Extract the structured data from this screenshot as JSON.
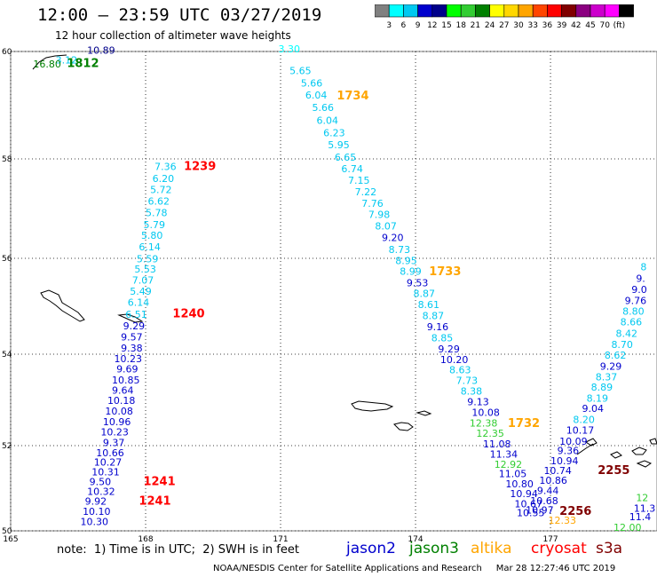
{
  "title": "12:00 – 23:59 UTC 03/27/2019",
  "subtitle": "12 hour collection of altimeter wave heights",
  "colorbar": {
    "colors": [
      "#808080",
      "#00ffff",
      "#00c8f0",
      "#0000cd",
      "#00008b",
      "#00ff00",
      "#32cd32",
      "#008000",
      "#ffff00",
      "#ffd700",
      "#ffa500",
      "#ff4500",
      "#ff0000",
      "#800000",
      "#8b0080",
      "#cc00cc",
      "#ff00ff",
      "#000000"
    ],
    "labels": [
      "3",
      "6",
      "9",
      "12",
      "15",
      "18",
      "21",
      "24",
      "27",
      "30",
      "33",
      "36",
      "39",
      "42",
      "45",
      "70",
      "(ft)"
    ]
  },
  "axes": {
    "lon_ticks": [
      "165",
      "168",
      "171",
      "174",
      "177"
    ],
    "lat_ticks": [
      "60",
      "58",
      "56",
      "54",
      "52",
      "50"
    ]
  },
  "note": "note:  1) Time is in UTC;  2) SWH is in feet",
  "missions": [
    {
      "name": "jason2",
      "color": "#0000cd"
    },
    {
      "name": "jason3",
      "color": "#008000"
    },
    {
      "name": "altika",
      "color": "#ffa500"
    },
    {
      "name": "cryosat",
      "color": "#ff0000"
    },
    {
      "name": "s3a",
      "color": "#800000"
    }
  ],
  "credit": "NOAA/NESDIS Center for Satellite Applications and Research     Mar 28 12:27:46 UTC 2019",
  "labels": [
    {
      "t": "10.89",
      "lon": 166.7,
      "lat": 59.96,
      "c": "#00008b"
    },
    {
      "t": "3.12",
      "lon": 166.0,
      "lat": 59.78,
      "c": "#00c8f0"
    },
    {
      "t": "16.80",
      "lon": 165.5,
      "lat": 59.7,
      "c": "#008000"
    },
    {
      "t": "1812",
      "lon": 166.25,
      "lat": 59.71,
      "c": "#008000",
      "b": true
    },
    {
      "t": "1239",
      "lon": 168.85,
      "lat": 57.78,
      "c": "#ff0000",
      "b": true
    },
    {
      "t": "7.36",
      "lon": 168.2,
      "lat": 57.78,
      "c": "#00c8f0"
    },
    {
      "t": "6.20",
      "lon": 168.15,
      "lat": 57.54,
      "c": "#00c8f0"
    },
    {
      "t": "5.72",
      "lon": 168.1,
      "lat": 57.31,
      "c": "#00c8f0"
    },
    {
      "t": "6.62",
      "lon": 168.05,
      "lat": 57.08,
      "c": "#00c8f0"
    },
    {
      "t": "5.78",
      "lon": 168.0,
      "lat": 56.85,
      "c": "#00c8f0"
    },
    {
      "t": "5.79",
      "lon": 167.95,
      "lat": 56.61,
      "c": "#00c8f0"
    },
    {
      "t": "5.80",
      "lon": 167.9,
      "lat": 56.39,
      "c": "#00c8f0"
    },
    {
      "t": "6.14",
      "lon": 167.85,
      "lat": 56.16,
      "c": "#00c8f0"
    },
    {
      "t": "5.59",
      "lon": 167.8,
      "lat": 55.92,
      "c": "#00c8f0"
    },
    {
      "t": "5.53",
      "lon": 167.75,
      "lat": 55.7,
      "c": "#00c8f0"
    },
    {
      "t": "7.07",
      "lon": 167.7,
      "lat": 55.47,
      "c": "#00c8f0"
    },
    {
      "t": "5.49",
      "lon": 167.65,
      "lat": 55.24,
      "c": "#00c8f0"
    },
    {
      "t": "6.14",
      "lon": 167.6,
      "lat": 55.01,
      "c": "#00c8f0"
    },
    {
      "t": "6.51",
      "lon": 167.55,
      "lat": 54.76,
      "c": "#00c8f0"
    },
    {
      "t": "1240",
      "lon": 168.6,
      "lat": 54.77,
      "c": "#ff0000",
      "b": true
    },
    {
      "t": "9.29",
      "lon": 167.5,
      "lat": 54.52,
      "c": "#0000cd"
    },
    {
      "t": "9.57",
      "lon": 167.45,
      "lat": 54.29,
      "c": "#0000cd"
    },
    {
      "t": "9.38",
      "lon": 167.45,
      "lat": 54.06,
      "c": "#0000cd"
    },
    {
      "t": "10.23",
      "lon": 167.3,
      "lat": 53.83,
      "c": "#0000cd"
    },
    {
      "t": "9.69",
      "lon": 167.35,
      "lat": 53.6,
      "c": "#0000cd"
    },
    {
      "t": "10.85",
      "lon": 167.25,
      "lat": 53.36,
      "c": "#0000cd"
    },
    {
      "t": "9.64",
      "lon": 167.25,
      "lat": 53.14,
      "c": "#0000cd"
    },
    {
      "t": "10.18",
      "lon": 167.15,
      "lat": 52.91,
      "c": "#0000cd"
    },
    {
      "t": "10.08",
      "lon": 167.1,
      "lat": 52.68,
      "c": "#0000cd"
    },
    {
      "t": "10.96",
      "lon": 167.05,
      "lat": 52.45,
      "c": "#0000cd"
    },
    {
      "t": "10.23",
      "lon": 167.0,
      "lat": 52.22,
      "c": "#0000cd"
    },
    {
      "t": "9.37",
      "lon": 167.05,
      "lat": 51.99,
      "c": "#0000cd"
    },
    {
      "t": "10.66",
      "lon": 166.9,
      "lat": 51.75,
      "c": "#0000cd"
    },
    {
      "t": "10.27",
      "lon": 166.85,
      "lat": 51.53,
      "c": "#0000cd"
    },
    {
      "t": "10.31",
      "lon": 166.8,
      "lat": 51.3,
      "c": "#0000cd"
    },
    {
      "t": "9.50",
      "lon": 166.75,
      "lat": 51.07,
      "c": "#0000cd"
    },
    {
      "t": "1241",
      "lon": 167.95,
      "lat": 51.07,
      "c": "#ff0000",
      "b": true
    },
    {
      "t": "10.32",
      "lon": 166.7,
      "lat": 50.84,
      "c": "#0000cd"
    },
    {
      "t": "9.92",
      "lon": 166.65,
      "lat": 50.61,
      "c": "#0000cd"
    },
    {
      "t": "1241",
      "lon": 167.85,
      "lat": 50.61,
      "c": "#ff0000",
      "b": true
    },
    {
      "t": "10.10",
      "lon": 166.6,
      "lat": 50.37,
      "c": "#0000cd"
    },
    {
      "t": "10.30",
      "lon": 166.55,
      "lat": 50.14,
      "c": "#0000cd"
    },
    {
      "t": "3.30",
      "lon": 170.95,
      "lat": 59.98,
      "c": "#00ffff"
    },
    {
      "t": "5.65",
      "lon": 171.2,
      "lat": 59.58,
      "c": "#00c8f0"
    },
    {
      "t": "5.66",
      "lon": 171.45,
      "lat": 59.35,
      "c": "#00c8f0"
    },
    {
      "t": "6.04",
      "lon": 171.55,
      "lat": 59.12,
      "c": "#00c8f0"
    },
    {
      "t": "1734",
      "lon": 172.25,
      "lat": 59.11,
      "c": "#ffa500",
      "b": true
    },
    {
      "t": "5.66",
      "lon": 171.7,
      "lat": 58.89,
      "c": "#00c8f0"
    },
    {
      "t": "6.04",
      "lon": 171.8,
      "lat": 58.65,
      "c": "#00c8f0"
    },
    {
      "t": "6.23",
      "lon": 171.95,
      "lat": 58.42,
      "c": "#00c8f0"
    },
    {
      "t": "5.95",
      "lon": 172.05,
      "lat": 58.2,
      "c": "#00c8f0"
    },
    {
      "t": "6.65",
      "lon": 172.2,
      "lat": 57.96,
      "c": "#00c8f0"
    },
    {
      "t": "6.74",
      "lon": 172.35,
      "lat": 57.73,
      "c": "#00c8f0"
    },
    {
      "t": "7.15",
      "lon": 172.5,
      "lat": 57.5,
      "c": "#00c8f0"
    },
    {
      "t": "7.22",
      "lon": 172.65,
      "lat": 57.27,
      "c": "#00c8f0"
    },
    {
      "t": "7.76",
      "lon": 172.8,
      "lat": 57.04,
      "c": "#00c8f0"
    },
    {
      "t": "7.98",
      "lon": 172.95,
      "lat": 56.81,
      "c": "#00c8f0"
    },
    {
      "t": "8.07",
      "lon": 173.1,
      "lat": 56.58,
      "c": "#00c8f0"
    },
    {
      "t": "9.20",
      "lon": 173.25,
      "lat": 56.35,
      "c": "#0000cd"
    },
    {
      "t": "8.73",
      "lon": 173.4,
      "lat": 56.11,
      "c": "#00c8f0"
    },
    {
      "t": "8.95",
      "lon": 173.55,
      "lat": 55.88,
      "c": "#00c8f0"
    },
    {
      "t": "8.99",
      "lon": 173.65,
      "lat": 55.66,
      "c": "#00c8f0"
    },
    {
      "t": "1733",
      "lon": 174.3,
      "lat": 55.65,
      "c": "#ffa500",
      "b": true
    },
    {
      "t": "9.53",
      "lon": 173.8,
      "lat": 55.42,
      "c": "#0000cd"
    },
    {
      "t": "8.87",
      "lon": 173.95,
      "lat": 55.19,
      "c": "#00c8f0"
    },
    {
      "t": "8.61",
      "lon": 174.05,
      "lat": 54.96,
      "c": "#00c8f0"
    },
    {
      "t": "8.87",
      "lon": 174.15,
      "lat": 54.73,
      "c": "#00c8f0"
    },
    {
      "t": "9.16",
      "lon": 174.25,
      "lat": 54.5,
      "c": "#0000cd"
    },
    {
      "t": "8.85",
      "lon": 174.35,
      "lat": 54.27,
      "c": "#00c8f0"
    },
    {
      "t": "9.29",
      "lon": 174.5,
      "lat": 54.04,
      "c": "#0000cd"
    },
    {
      "t": "10.20",
      "lon": 174.55,
      "lat": 53.81,
      "c": "#0000cd"
    },
    {
      "t": "8.63",
      "lon": 174.75,
      "lat": 53.58,
      "c": "#00c8f0"
    },
    {
      "t": "7.73",
      "lon": 174.9,
      "lat": 53.35,
      "c": "#00c8f0"
    },
    {
      "t": "8.38",
      "lon": 175.0,
      "lat": 53.12,
      "c": "#00c8f0"
    },
    {
      "t": "9.13",
      "lon": 175.15,
      "lat": 52.88,
      "c": "#0000cd"
    },
    {
      "t": "10.08",
      "lon": 175.25,
      "lat": 52.65,
      "c": "#0000cd"
    },
    {
      "t": "12.38",
      "lon": 175.2,
      "lat": 52.42,
      "c": "#32cd32"
    },
    {
      "t": "1732",
      "lon": 176.05,
      "lat": 52.41,
      "c": "#ffa500",
      "b": true
    },
    {
      "t": "12.35",
      "lon": 175.35,
      "lat": 52.19,
      "c": "#32cd32"
    },
    {
      "t": "11.08",
      "lon": 175.5,
      "lat": 51.96,
      "c": "#0000cd"
    },
    {
      "t": "11.34",
      "lon": 175.65,
      "lat": 51.72,
      "c": "#0000cd"
    },
    {
      "t": "12.92",
      "lon": 175.75,
      "lat": 51.48,
      "c": "#32cd32"
    },
    {
      "t": "11.05",
      "lon": 175.85,
      "lat": 51.26,
      "c": "#0000cd"
    },
    {
      "t": "10.80",
      "lon": 176.0,
      "lat": 51.02,
      "c": "#0000cd"
    },
    {
      "t": "10.94",
      "lon": 176.1,
      "lat": 50.79,
      "c": "#0000cd"
    },
    {
      "t": "10.67",
      "lon": 176.2,
      "lat": 50.55,
      "c": "#0000cd"
    },
    {
      "t": "10.55",
      "lon": 176.25,
      "lat": 50.34,
      "c": "#0000cd"
    },
    {
      "t": "10.97",
      "lon": 176.45,
      "lat": 50.41,
      "c": "#0000cd"
    },
    {
      "t": "10.68",
      "lon": 176.55,
      "lat": 50.63,
      "c": "#0000cd"
    },
    {
      "t": "9.44",
      "lon": 176.7,
      "lat": 50.86,
      "c": "#0000cd"
    },
    {
      "t": "10.86",
      "lon": 176.75,
      "lat": 51.1,
      "c": "#0000cd"
    },
    {
      "t": "10.74",
      "lon": 176.85,
      "lat": 51.33,
      "c": "#0000cd"
    },
    {
      "t": "2255",
      "lon": 178.05,
      "lat": 51.33,
      "c": "#800000",
      "b": true
    },
    {
      "t": "10.94",
      "lon": 177.0,
      "lat": 51.56,
      "c": "#0000cd"
    },
    {
      "t": "9.36",
      "lon": 177.15,
      "lat": 51.8,
      "c": "#0000cd"
    },
    {
      "t": "10.09",
      "lon": 177.2,
      "lat": 52.02,
      "c": "#0000cd"
    },
    {
      "t": "10.17",
      "lon": 177.35,
      "lat": 52.26,
      "c": "#0000cd"
    },
    {
      "t": "2256",
      "lon": 177.2,
      "lat": 50.38,
      "c": "#800000",
      "b": true
    },
    {
      "t": "12.33",
      "lon": 176.95,
      "lat": 50.17,
      "c": "#ffa500"
    },
    {
      "t": "8.20",
      "lon": 177.5,
      "lat": 52.5,
      "c": "#00c8f0"
    },
    {
      "t": "9.04",
      "lon": 177.7,
      "lat": 52.74,
      "c": "#0000cd"
    },
    {
      "t": "8.19",
      "lon": 177.8,
      "lat": 52.96,
      "c": "#00c8f0"
    },
    {
      "t": "8.89",
      "lon": 177.9,
      "lat": 53.2,
      "c": "#00c8f0"
    },
    {
      "t": "8.37",
      "lon": 178.0,
      "lat": 53.43,
      "c": "#00c8f0"
    },
    {
      "t": "9.29",
      "lon": 178.1,
      "lat": 53.66,
      "c": "#0000cd"
    },
    {
      "t": "8.62",
      "lon": 178.2,
      "lat": 53.9,
      "c": "#00c8f0"
    },
    {
      "t": "8.70",
      "lon": 178.35,
      "lat": 54.13,
      "c": "#00c8f0"
    },
    {
      "t": "8.42",
      "lon": 178.45,
      "lat": 54.36,
      "c": "#00c8f0"
    },
    {
      "t": "8.66",
      "lon": 178.55,
      "lat": 54.6,
      "c": "#00c8f0"
    },
    {
      "t": "8.80",
      "lon": 178.6,
      "lat": 54.82,
      "c": "#00c8f0"
    },
    {
      "t": "9.76",
      "lon": 178.65,
      "lat": 55.05,
      "c": "#0000cd"
    },
    {
      "t": "9.0",
      "lon": 178.8,
      "lat": 55.28,
      "c": "#0000cd"
    },
    {
      "t": "9.",
      "lon": 178.9,
      "lat": 55.51,
      "c": "#0000cd"
    },
    {
      "t": "8",
      "lon": 179.0,
      "lat": 55.75,
      "c": "#00c8f0"
    },
    {
      "t": "12.00",
      "lon": 178.4,
      "lat": 50.0,
      "c": "#32cd32"
    },
    {
      "t": "11.4",
      "lon": 178.75,
      "lat": 50.25,
      "c": "#0000cd"
    },
    {
      "t": "11.3",
      "lon": 178.85,
      "lat": 50.45,
      "c": "#0000cd"
    },
    {
      "t": "12",
      "lon": 178.9,
      "lat": 50.7,
      "c": "#32cd32"
    }
  ]
}
